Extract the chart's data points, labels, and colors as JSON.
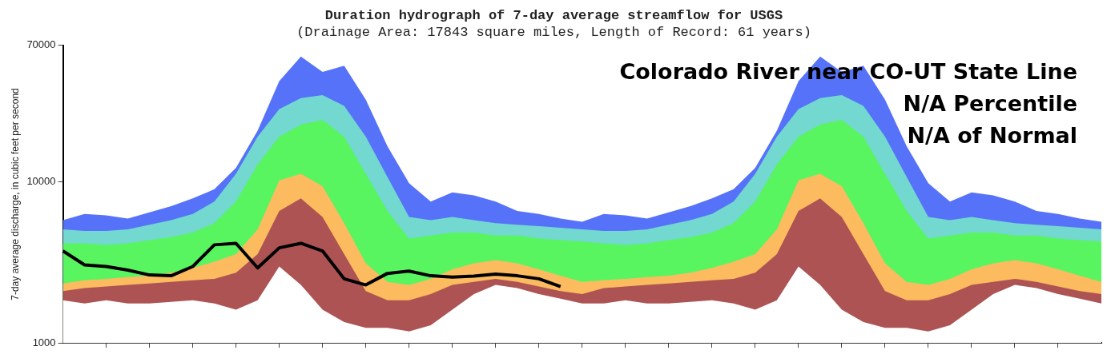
{
  "chart_data": {
    "type": "area",
    "title": "Duration hydrograph of 7-day average streamflow for USGS",
    "subtitle": "(Drainage Area: 17843 square miles, Length of Record: 61 years)",
    "ylabel": "7-day average discharge, in cubic feet per second",
    "log": "y",
    "legend": false,
    "tick_labels": "y",
    "ylim": [
      1000,
      70000
    ],
    "yticks": [
      1000,
      10000,
      70000
    ],
    "categories": [
      null,
      null,
      null,
      null,
      null,
      null,
      null,
      null,
      null,
      null,
      null,
      null,
      null,
      null,
      null,
      null,
      null,
      null,
      null,
      null,
      null,
      null,
      null,
      null,
      null,
      null,
      null,
      null,
      null,
      null,
      null,
      null,
      null,
      null,
      null,
      null,
      null,
      null,
      null,
      null,
      null,
      null,
      null,
      null,
      null,
      null,
      null,
      null,
      null
    ],
    "series": [
      {
        "color": "#5672f8",
        "values": [
          5780,
          6310,
          6180,
          5910,
          6450,
          7050,
          7870,
          8980,
          12200,
          20700,
          42000,
          59700,
          47900,
          52300,
          32200,
          16600,
          9800,
          7530,
          8590,
          8220,
          7530,
          6590,
          6310,
          5900,
          5650,
          6310,
          6180,
          5910,
          6450,
          7050,
          7870,
          8980,
          12200,
          20700,
          42000,
          59700,
          47900,
          52300,
          32200,
          16600,
          9800,
          7530,
          8590,
          8220,
          7530,
          6590,
          6310,
          5900,
          5650
        ]
      },
      {
        "color": "#72d8d0",
        "values": [
          5060,
          4950,
          4950,
          5060,
          5410,
          5780,
          6310,
          7530,
          11200,
          19000,
          28200,
          33000,
          34400,
          29500,
          19000,
          10700,
          6040,
          5780,
          6040,
          5780,
          5530,
          5410,
          5300,
          5180,
          5060,
          4950,
          4950,
          5060,
          5410,
          5780,
          6310,
          7530,
          11200,
          19000,
          28200,
          33000,
          34400,
          29500,
          19000,
          10700,
          6040,
          5780,
          6040,
          5780,
          5530,
          5410,
          5300,
          5180,
          5060
        ]
      },
      {
        "color": "#58f560",
        "values": [
          4150,
          4150,
          4060,
          4150,
          4340,
          4530,
          4840,
          5530,
          7530,
          12800,
          19000,
          22600,
          24200,
          19000,
          11200,
          6590,
          4440,
          4640,
          4840,
          4840,
          4640,
          4640,
          4440,
          4340,
          4250,
          4150,
          4060,
          4150,
          4340,
          4530,
          4840,
          5530,
          7530,
          12800,
          19000,
          22600,
          24200,
          19000,
          11200,
          6590,
          4440,
          4640,
          4840,
          4840,
          4640,
          4640,
          4440,
          4340,
          4250
        ]
      },
      {
        "color": "#fbbb5e",
        "values": [
          2340,
          2450,
          2500,
          2560,
          2610,
          2730,
          2920,
          3190,
          3560,
          5060,
          10200,
          11200,
          9380,
          5530,
          3120,
          2390,
          2290,
          2500,
          2860,
          3120,
          3260,
          3120,
          2860,
          2610,
          2390,
          2450,
          2500,
          2560,
          2610,
          2730,
          2920,
          3190,
          3560,
          5060,
          10200,
          11200,
          9380,
          5530,
          3120,
          2390,
          2290,
          2500,
          2860,
          3120,
          3260,
          3120,
          2860,
          2610,
          2390
        ]
      },
      {
        "color": "#ad5353",
        "values": [
          2100,
          2190,
          2240,
          2290,
          2340,
          2390,
          2450,
          2500,
          2730,
          3560,
          6590,
          7870,
          6040,
          3560,
          2100,
          1840,
          1840,
          2010,
          2290,
          2390,
          2500,
          2390,
          2240,
          2100,
          2010,
          2190,
          2240,
          2290,
          2340,
          2390,
          2450,
          2500,
          2730,
          3560,
          6590,
          7870,
          6040,
          3560,
          2100,
          1840,
          1840,
          2010,
          2290,
          2390,
          2500,
          2390,
          2240,
          2100,
          2010
        ]
      },
      {
        "color": "#ffffff",
        "values": [
          1840,
          1760,
          1840,
          1760,
          1760,
          1800,
          1840,
          1760,
          1610,
          1840,
          2980,
          2290,
          1610,
          1350,
          1240,
          1240,
          1180,
          1290,
          1610,
          2010,
          2290,
          2190,
          2010,
          1880,
          1760,
          1760,
          1840,
          1760,
          1760,
          1800,
          1840,
          1760,
          1610,
          1840,
          2980,
          2290,
          1610,
          1350,
          1240,
          1240,
          1180,
          1290,
          1610,
          2010,
          2290,
          2190,
          2010,
          1880,
          1760
        ]
      },
      {
        "type": "line",
        "color": "#000000",
        "values": [
          3720,
          3050,
          2980,
          2830,
          2640,
          2610,
          2980,
          4060,
          4150,
          2920,
          3890,
          4150,
          3720,
          2500,
          2290,
          2700,
          2790,
          2610,
          2560,
          2600,
          2670,
          2610,
          2500,
          2240,
          null,
          null,
          null,
          null,
          null,
          null,
          null,
          null,
          null,
          null,
          null,
          null,
          null,
          null,
          null,
          null,
          null,
          null,
          null,
          null,
          null,
          null,
          null,
          null,
          null
        ]
      }
    ],
    "annotations": [
      "Colorado River near CO-UT State Line",
      "N/A Percentile",
      "N/A of Normal"
    ]
  }
}
